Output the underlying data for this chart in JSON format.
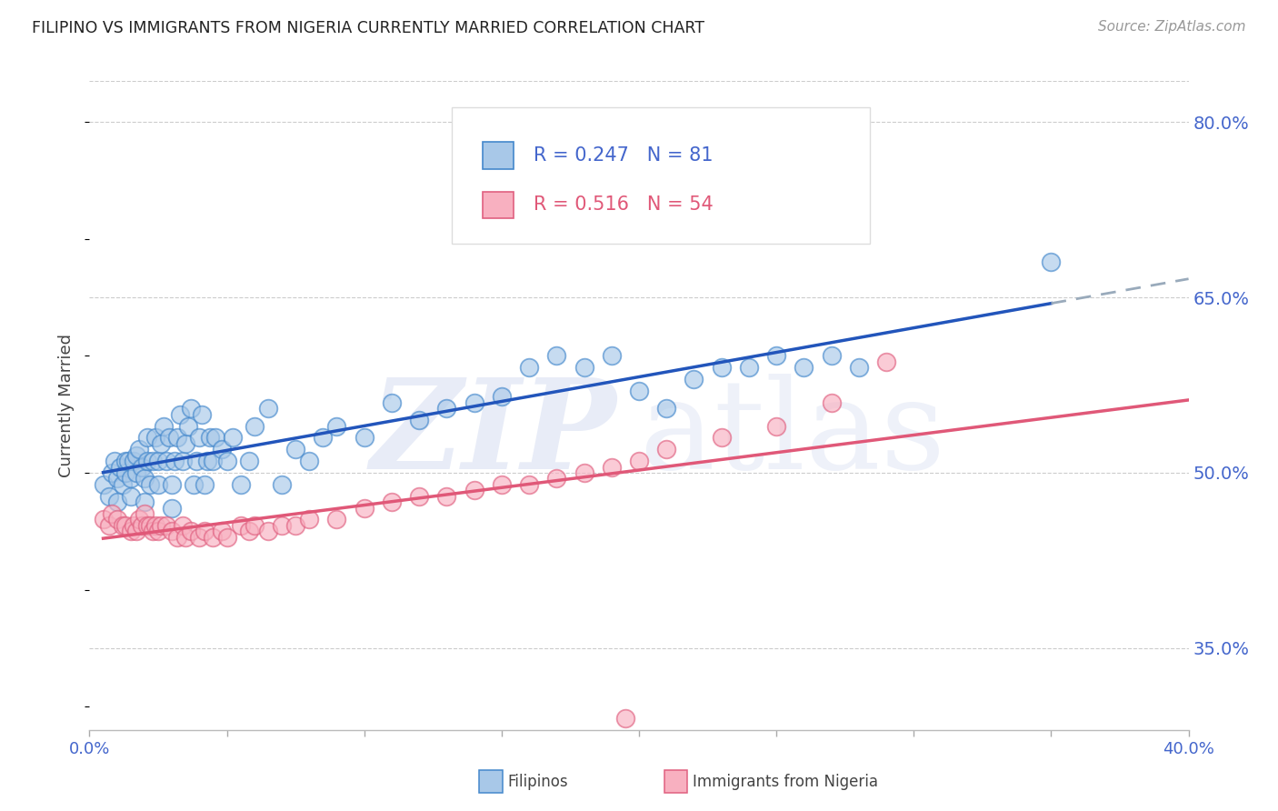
{
  "title": "FILIPINO VS IMMIGRANTS FROM NIGERIA CURRENTLY MARRIED CORRELATION CHART",
  "source": "Source: ZipAtlas.com",
  "ylabel": "Currently Married",
  "xlim": [
    0.0,
    0.4
  ],
  "ylim": [
    0.28,
    0.835
  ],
  "yticks": [
    0.35,
    0.5,
    0.65,
    0.8
  ],
  "ytick_labels": [
    "35.0%",
    "50.0%",
    "65.0%",
    "80.0%"
  ],
  "xtick_positions": [
    0.0,
    0.05,
    0.1,
    0.15,
    0.2,
    0.25,
    0.3,
    0.35,
    0.4
  ],
  "xtick_labels": [
    "0.0%",
    "",
    "",
    "",
    "",
    "",
    "",
    "",
    "40.0%"
  ],
  "blue_R": 0.247,
  "blue_N": 81,
  "pink_R": 0.516,
  "pink_N": 54,
  "blue_face": "#a8c8e8",
  "blue_edge": "#4488cc",
  "pink_face": "#f8b0c0",
  "pink_edge": "#e06080",
  "blue_line": "#2255bb",
  "pink_line": "#e05878",
  "dash_color": "#99aabb",
  "watermark_zip_color": "#ccd8f0",
  "watermark_atlas_color": "#c0ccec",
  "grid_color": "#cccccc",
  "tick_label_color": "#4466cc",
  "legend_text_blue": "#4466cc",
  "legend_text_pink": "#e05878",
  "blue_x": [
    0.005,
    0.007,
    0.008,
    0.009,
    0.01,
    0.01,
    0.011,
    0.012,
    0.013,
    0.013,
    0.014,
    0.015,
    0.015,
    0.016,
    0.017,
    0.017,
    0.018,
    0.019,
    0.02,
    0.02,
    0.021,
    0.021,
    0.022,
    0.023,
    0.024,
    0.025,
    0.025,
    0.026,
    0.027,
    0.028,
    0.029,
    0.03,
    0.03,
    0.031,
    0.032,
    0.033,
    0.034,
    0.035,
    0.036,
    0.037,
    0.038,
    0.039,
    0.04,
    0.041,
    0.042,
    0.043,
    0.044,
    0.045,
    0.046,
    0.048,
    0.05,
    0.052,
    0.055,
    0.058,
    0.06,
    0.065,
    0.07,
    0.075,
    0.08,
    0.085,
    0.09,
    0.1,
    0.11,
    0.12,
    0.13,
    0.14,
    0.15,
    0.16,
    0.17,
    0.18,
    0.19,
    0.2,
    0.21,
    0.22,
    0.23,
    0.24,
    0.25,
    0.26,
    0.27,
    0.28,
    0.35
  ],
  "blue_y": [
    0.49,
    0.48,
    0.5,
    0.51,
    0.475,
    0.495,
    0.505,
    0.49,
    0.5,
    0.51,
    0.51,
    0.48,
    0.495,
    0.51,
    0.5,
    0.515,
    0.52,
    0.505,
    0.475,
    0.495,
    0.51,
    0.53,
    0.49,
    0.51,
    0.53,
    0.49,
    0.51,
    0.525,
    0.54,
    0.51,
    0.53,
    0.47,
    0.49,
    0.51,
    0.53,
    0.55,
    0.51,
    0.525,
    0.54,
    0.555,
    0.49,
    0.51,
    0.53,
    0.55,
    0.49,
    0.51,
    0.53,
    0.51,
    0.53,
    0.52,
    0.51,
    0.53,
    0.49,
    0.51,
    0.54,
    0.555,
    0.49,
    0.52,
    0.51,
    0.53,
    0.54,
    0.53,
    0.56,
    0.545,
    0.555,
    0.56,
    0.565,
    0.59,
    0.6,
    0.59,
    0.6,
    0.57,
    0.555,
    0.58,
    0.59,
    0.59,
    0.6,
    0.59,
    0.6,
    0.59,
    0.68
  ],
  "pink_x": [
    0.005,
    0.007,
    0.008,
    0.01,
    0.012,
    0.013,
    0.015,
    0.016,
    0.017,
    0.018,
    0.019,
    0.02,
    0.021,
    0.022,
    0.023,
    0.024,
    0.025,
    0.026,
    0.028,
    0.03,
    0.032,
    0.034,
    0.035,
    0.037,
    0.04,
    0.042,
    0.045,
    0.048,
    0.05,
    0.055,
    0.058,
    0.06,
    0.065,
    0.07,
    0.075,
    0.08,
    0.09,
    0.1,
    0.11,
    0.12,
    0.13,
    0.14,
    0.15,
    0.16,
    0.17,
    0.18,
    0.19,
    0.2,
    0.21,
    0.23,
    0.25,
    0.27,
    0.29,
    0.195
  ],
  "pink_y": [
    0.46,
    0.455,
    0.465,
    0.46,
    0.455,
    0.455,
    0.45,
    0.455,
    0.45,
    0.46,
    0.455,
    0.465,
    0.455,
    0.455,
    0.45,
    0.455,
    0.45,
    0.455,
    0.455,
    0.45,
    0.445,
    0.455,
    0.445,
    0.45,
    0.445,
    0.45,
    0.445,
    0.45,
    0.445,
    0.455,
    0.45,
    0.455,
    0.45,
    0.455,
    0.455,
    0.46,
    0.46,
    0.47,
    0.475,
    0.48,
    0.48,
    0.485,
    0.49,
    0.49,
    0.495,
    0.5,
    0.505,
    0.51,
    0.52,
    0.53,
    0.54,
    0.56,
    0.595,
    0.29
  ]
}
